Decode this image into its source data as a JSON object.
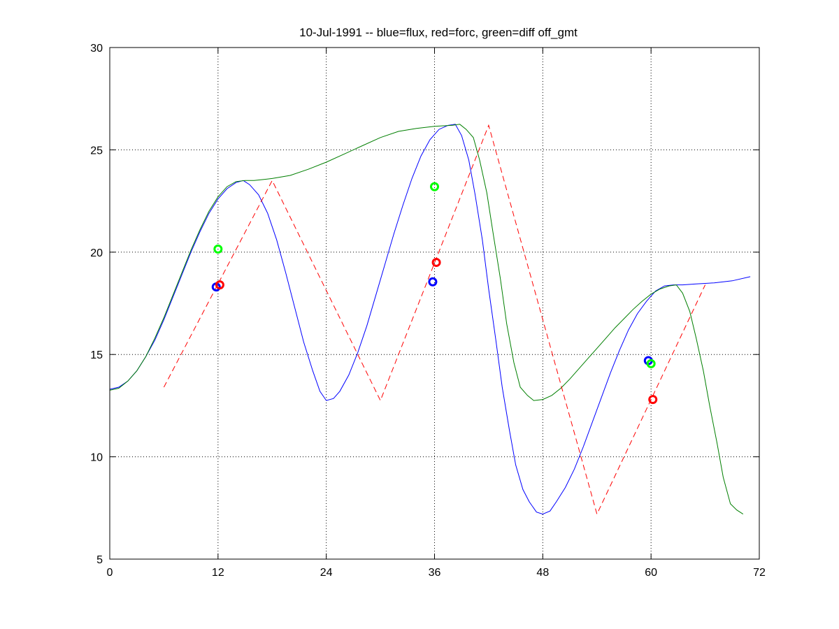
{
  "chart_data": {
    "type": "line",
    "title": "10-Jul-1991 -- blue=flux, red=forc, green=diff off_gmt",
    "xlabel": "",
    "ylabel": "",
    "xlim": [
      0,
      72
    ],
    "ylim": [
      5,
      30
    ],
    "xticks": [
      0,
      12,
      24,
      36,
      48,
      60,
      72
    ],
    "yticks": [
      5,
      10,
      15,
      20,
      25,
      30
    ],
    "grid": true,
    "series": [
      {
        "color": "#0000ff",
        "style": "solid",
        "points": [
          [
            0,
            13.3
          ],
          [
            1,
            13.4
          ],
          [
            2,
            13.7
          ],
          [
            3,
            14.2
          ],
          [
            4,
            14.9
          ],
          [
            5,
            15.7
          ],
          [
            6,
            16.7
          ],
          [
            7,
            17.8
          ],
          [
            8,
            18.9
          ],
          [
            9,
            20.0
          ],
          [
            10,
            21.0
          ],
          [
            11,
            21.9
          ],
          [
            12,
            22.6
          ],
          [
            13,
            23.1
          ],
          [
            14,
            23.4
          ],
          [
            14.8,
            23.5
          ],
          [
            15.5,
            23.3
          ],
          [
            16.5,
            22.8
          ],
          [
            17.5,
            21.9
          ],
          [
            18.5,
            20.6
          ],
          [
            19.5,
            19.0
          ],
          [
            20.5,
            17.3
          ],
          [
            21.5,
            15.6
          ],
          [
            22.5,
            14.2
          ],
          [
            23.3,
            13.2
          ],
          [
            24,
            12.75
          ],
          [
            24.8,
            12.85
          ],
          [
            25.5,
            13.2
          ],
          [
            26.5,
            14.0
          ],
          [
            27.5,
            15.1
          ],
          [
            28.5,
            16.4
          ],
          [
            29.5,
            17.9
          ],
          [
            30.5,
            19.4
          ],
          [
            31.5,
            20.9
          ],
          [
            32.5,
            22.3
          ],
          [
            33.5,
            23.6
          ],
          [
            34.5,
            24.7
          ],
          [
            35.5,
            25.5
          ],
          [
            36.5,
            26.0
          ],
          [
            37.5,
            26.2
          ],
          [
            38.3,
            26.25
          ],
          [
            39,
            25.7
          ],
          [
            39.8,
            24.5
          ],
          [
            40.5,
            22.8
          ],
          [
            41.3,
            20.6
          ],
          [
            42,
            18.2
          ],
          [
            42.8,
            15.7
          ],
          [
            43.5,
            13.4
          ],
          [
            44.3,
            11.3
          ],
          [
            45,
            9.6
          ],
          [
            45.8,
            8.4
          ],
          [
            46.5,
            7.8
          ],
          [
            47.3,
            7.3
          ],
          [
            48,
            7.2
          ],
          [
            48.8,
            7.35
          ],
          [
            49.5,
            7.8
          ],
          [
            50.5,
            8.5
          ],
          [
            51.5,
            9.4
          ],
          [
            52.5,
            10.5
          ],
          [
            53.5,
            11.7
          ],
          [
            54.5,
            12.9
          ],
          [
            55.5,
            14.1
          ],
          [
            56.5,
            15.2
          ],
          [
            57.5,
            16.2
          ],
          [
            58.5,
            17.0
          ],
          [
            59.5,
            17.6
          ],
          [
            60.5,
            18.1
          ],
          [
            61.5,
            18.35
          ],
          [
            62.5,
            18.4
          ],
          [
            63.5,
            18.4
          ],
          [
            65,
            18.45
          ],
          [
            67,
            18.5
          ],
          [
            69,
            18.6
          ],
          [
            71,
            18.8
          ]
        ]
      },
      {
        "color": "#007f00",
        "style": "solid",
        "points": [
          [
            0,
            13.25
          ],
          [
            1,
            13.35
          ],
          [
            2,
            13.7
          ],
          [
            3,
            14.2
          ],
          [
            4,
            14.9
          ],
          [
            5,
            15.8
          ],
          [
            6,
            16.8
          ],
          [
            7,
            17.9
          ],
          [
            8,
            19.0
          ],
          [
            9,
            20.1
          ],
          [
            10,
            21.1
          ],
          [
            11,
            22.0
          ],
          [
            12,
            22.7
          ],
          [
            13,
            23.2
          ],
          [
            14,
            23.45
          ],
          [
            15,
            23.5
          ],
          [
            16,
            23.5
          ],
          [
            17,
            23.55
          ],
          [
            18,
            23.6
          ],
          [
            20,
            23.75
          ],
          [
            22,
            24.05
          ],
          [
            24,
            24.4
          ],
          [
            26,
            24.8
          ],
          [
            28,
            25.2
          ],
          [
            30,
            25.6
          ],
          [
            32,
            25.9
          ],
          [
            34,
            26.05
          ],
          [
            36,
            26.15
          ],
          [
            38,
            26.2
          ],
          [
            38.8,
            26.25
          ],
          [
            39.5,
            26.0
          ],
          [
            40.3,
            25.6
          ],
          [
            41,
            24.5
          ],
          [
            41.8,
            22.9
          ],
          [
            42.5,
            20.9
          ],
          [
            43.3,
            18.7
          ],
          [
            44,
            16.5
          ],
          [
            44.8,
            14.6
          ],
          [
            45.5,
            13.4
          ],
          [
            46.3,
            13.0
          ],
          [
            47,
            12.75
          ],
          [
            48,
            12.8
          ],
          [
            49,
            13.0
          ],
          [
            50,
            13.35
          ],
          [
            51,
            13.8
          ],
          [
            52,
            14.3
          ],
          [
            53,
            14.8
          ],
          [
            54,
            15.3
          ],
          [
            55,
            15.8
          ],
          [
            56,
            16.3
          ],
          [
            57,
            16.75
          ],
          [
            58,
            17.2
          ],
          [
            59,
            17.6
          ],
          [
            60,
            17.95
          ],
          [
            61,
            18.2
          ],
          [
            62,
            18.35
          ],
          [
            62.8,
            18.4
          ],
          [
            63.5,
            18.0
          ],
          [
            64.3,
            17.1
          ],
          [
            65,
            15.8
          ],
          [
            65.8,
            14.2
          ],
          [
            66.5,
            12.5
          ],
          [
            67.3,
            10.7
          ],
          [
            68,
            9.0
          ],
          [
            68.8,
            7.7
          ],
          [
            69.5,
            7.4
          ],
          [
            70.2,
            7.2
          ]
        ]
      },
      {
        "color": "#ff0000",
        "style": "dashed",
        "points": [
          [
            6,
            13.4
          ],
          [
            18,
            23.5
          ],
          [
            30,
            12.75
          ],
          [
            42,
            26.2
          ],
          [
            54,
            7.2
          ],
          [
            66,
            18.4
          ]
        ]
      }
    ],
    "markers": [
      {
        "color": "#0000ff",
        "points": [
          [
            11.8,
            18.3
          ],
          [
            35.8,
            18.55
          ],
          [
            59.7,
            14.7
          ]
        ]
      },
      {
        "color": "#ff0000",
        "points": [
          [
            12.2,
            18.4
          ],
          [
            36.2,
            19.5
          ],
          [
            60.2,
            12.8
          ]
        ]
      },
      {
        "color": "#00ff00",
        "points": [
          [
            12.0,
            20.15
          ],
          [
            36.0,
            23.2
          ],
          [
            60.0,
            14.55
          ]
        ]
      }
    ]
  }
}
